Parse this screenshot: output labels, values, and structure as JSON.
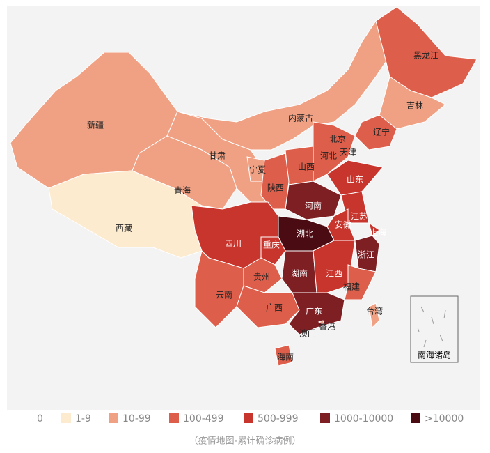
{
  "provinces": [
    {
      "name": "新疆",
      "color": "#f0a184"
    },
    {
      "name": "西藏",
      "color": "#fdebd0"
    },
    {
      "name": "青海",
      "color": "#f0a184"
    },
    {
      "name": "甘肃",
      "color": "#f0a184"
    },
    {
      "name": "内蒙古",
      "color": "#f0a184"
    },
    {
      "name": "宁夏",
      "color": "#f0a184"
    },
    {
      "name": "黑龙江",
      "color": "#dd5f4b"
    },
    {
      "name": "吉林",
      "color": "#f0a184"
    },
    {
      "name": "辽宁",
      "color": "#dd5f4b"
    },
    {
      "name": "北京",
      "color": "#dd5f4b"
    },
    {
      "name": "天津",
      "color": "#dd5f4b"
    },
    {
      "name": "河北",
      "color": "#dd5f4b"
    },
    {
      "name": "山西",
      "color": "#dd5f4b"
    },
    {
      "name": "陕西",
      "color": "#dd5f4b"
    },
    {
      "name": "山东",
      "color": "#c8352d"
    },
    {
      "name": "河南",
      "color": "#7e1f24"
    },
    {
      "name": "江苏",
      "color": "#c8352d"
    },
    {
      "name": "安徽",
      "color": "#c8352d"
    },
    {
      "name": "上海",
      "color": "#c8352d"
    },
    {
      "name": "湖北",
      "color": "#4a0c12"
    },
    {
      "name": "浙江",
      "color": "#7e1f24"
    },
    {
      "name": "四川",
      "color": "#c8352d"
    },
    {
      "name": "重庆",
      "color": "#c8352d"
    },
    {
      "name": "湖南",
      "color": "#7e1f24"
    },
    {
      "name": "江西",
      "color": "#c8352d"
    },
    {
      "name": "福建",
      "color": "#dd5f4b"
    },
    {
      "name": "贵州",
      "color": "#dd5f4b"
    },
    {
      "name": "云南",
      "color": "#dd5f4b"
    },
    {
      "name": "广西",
      "color": "#dd5f4b"
    },
    {
      "name": "广东",
      "color": "#7e1f24"
    },
    {
      "name": "海南",
      "color": "#dd5f4b"
    },
    {
      "name": "台湾",
      "color": "#f0a184"
    },
    {
      "name": "香港",
      "color": "#f0a184"
    },
    {
      "name": "澳门",
      "color": "#fdebd0"
    }
  ],
  "inset_label": "南海诸岛",
  "legend": [
    {
      "label": "0",
      "color": "#ffffff"
    },
    {
      "label": "1-9",
      "color": "#fdebd0"
    },
    {
      "label": "10-99",
      "color": "#f0a184"
    },
    {
      "label": "100-499",
      "color": "#dd5f4b"
    },
    {
      "label": "500-999",
      "color": "#c8352d"
    },
    {
      "label": "1000-10000",
      "color": "#7e1f24"
    },
    {
      "label": ">10000",
      "color": "#4a0c12"
    }
  ],
  "caption": "（疫情地图-累计确诊病例）"
}
